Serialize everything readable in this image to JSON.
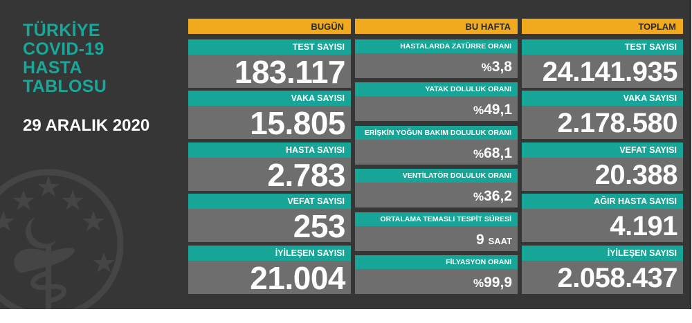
{
  "title_lines": [
    "TÜRKİYE",
    "COVID-19",
    "HASTA",
    "TABLOSU"
  ],
  "date": "29 ARALIK 2020",
  "colors": {
    "board": "#363636",
    "teal": "#16a596",
    "orange": "#f1a91d",
    "value_bg": "#6e6e6e",
    "title": "#17a89a"
  },
  "bugun": {
    "header": "BUGÜN",
    "items": [
      {
        "label": "TEST SAYISI",
        "value": "183.117"
      },
      {
        "label": "VAKA SAYISI",
        "value": "15.805"
      },
      {
        "label": "HASTA SAYISI",
        "value": "2.783"
      },
      {
        "label": "VEFAT SAYISI",
        "value": "253"
      },
      {
        "label": "İYİLEŞEN SAYISI",
        "value": "21.004"
      }
    ]
  },
  "bu_hafta": {
    "header": "BU HAFTA",
    "items": [
      {
        "label": "HASTALARDA ZATÜRRE ORANI",
        "prefix": "%",
        "value": "3,8"
      },
      {
        "label": "YATAK DOLULUK ORANI",
        "prefix": "%",
        "value": "49,1"
      },
      {
        "label": "ERİŞKİN YOĞUN BAKIM DOLULUK ORANI",
        "prefix": "%",
        "value": "68,1"
      },
      {
        "label": "VENTİLATÖR DOLULUK ORANI",
        "prefix": "%",
        "value": "36,2"
      },
      {
        "label": "ORTALAMA TEMASLI TESPİT SÜRESİ",
        "value": "9",
        "unit": "SAAT"
      },
      {
        "label": "FİLYASYON ORANI",
        "prefix": "%",
        "value": "99,9"
      }
    ]
  },
  "toplam": {
    "header": "TOPLAM",
    "items": [
      {
        "label": "TEST SAYISI",
        "value": "24.141.935"
      },
      {
        "label": "VAKA SAYISI",
        "value": "2.178.580"
      },
      {
        "label": "VEFAT SAYISI",
        "value": "20.388"
      },
      {
        "label": "AĞIR HASTA SAYISI",
        "value": "4.191"
      },
      {
        "label": "İYİLEŞEN SAYISI",
        "value": "2.058.437"
      }
    ]
  }
}
